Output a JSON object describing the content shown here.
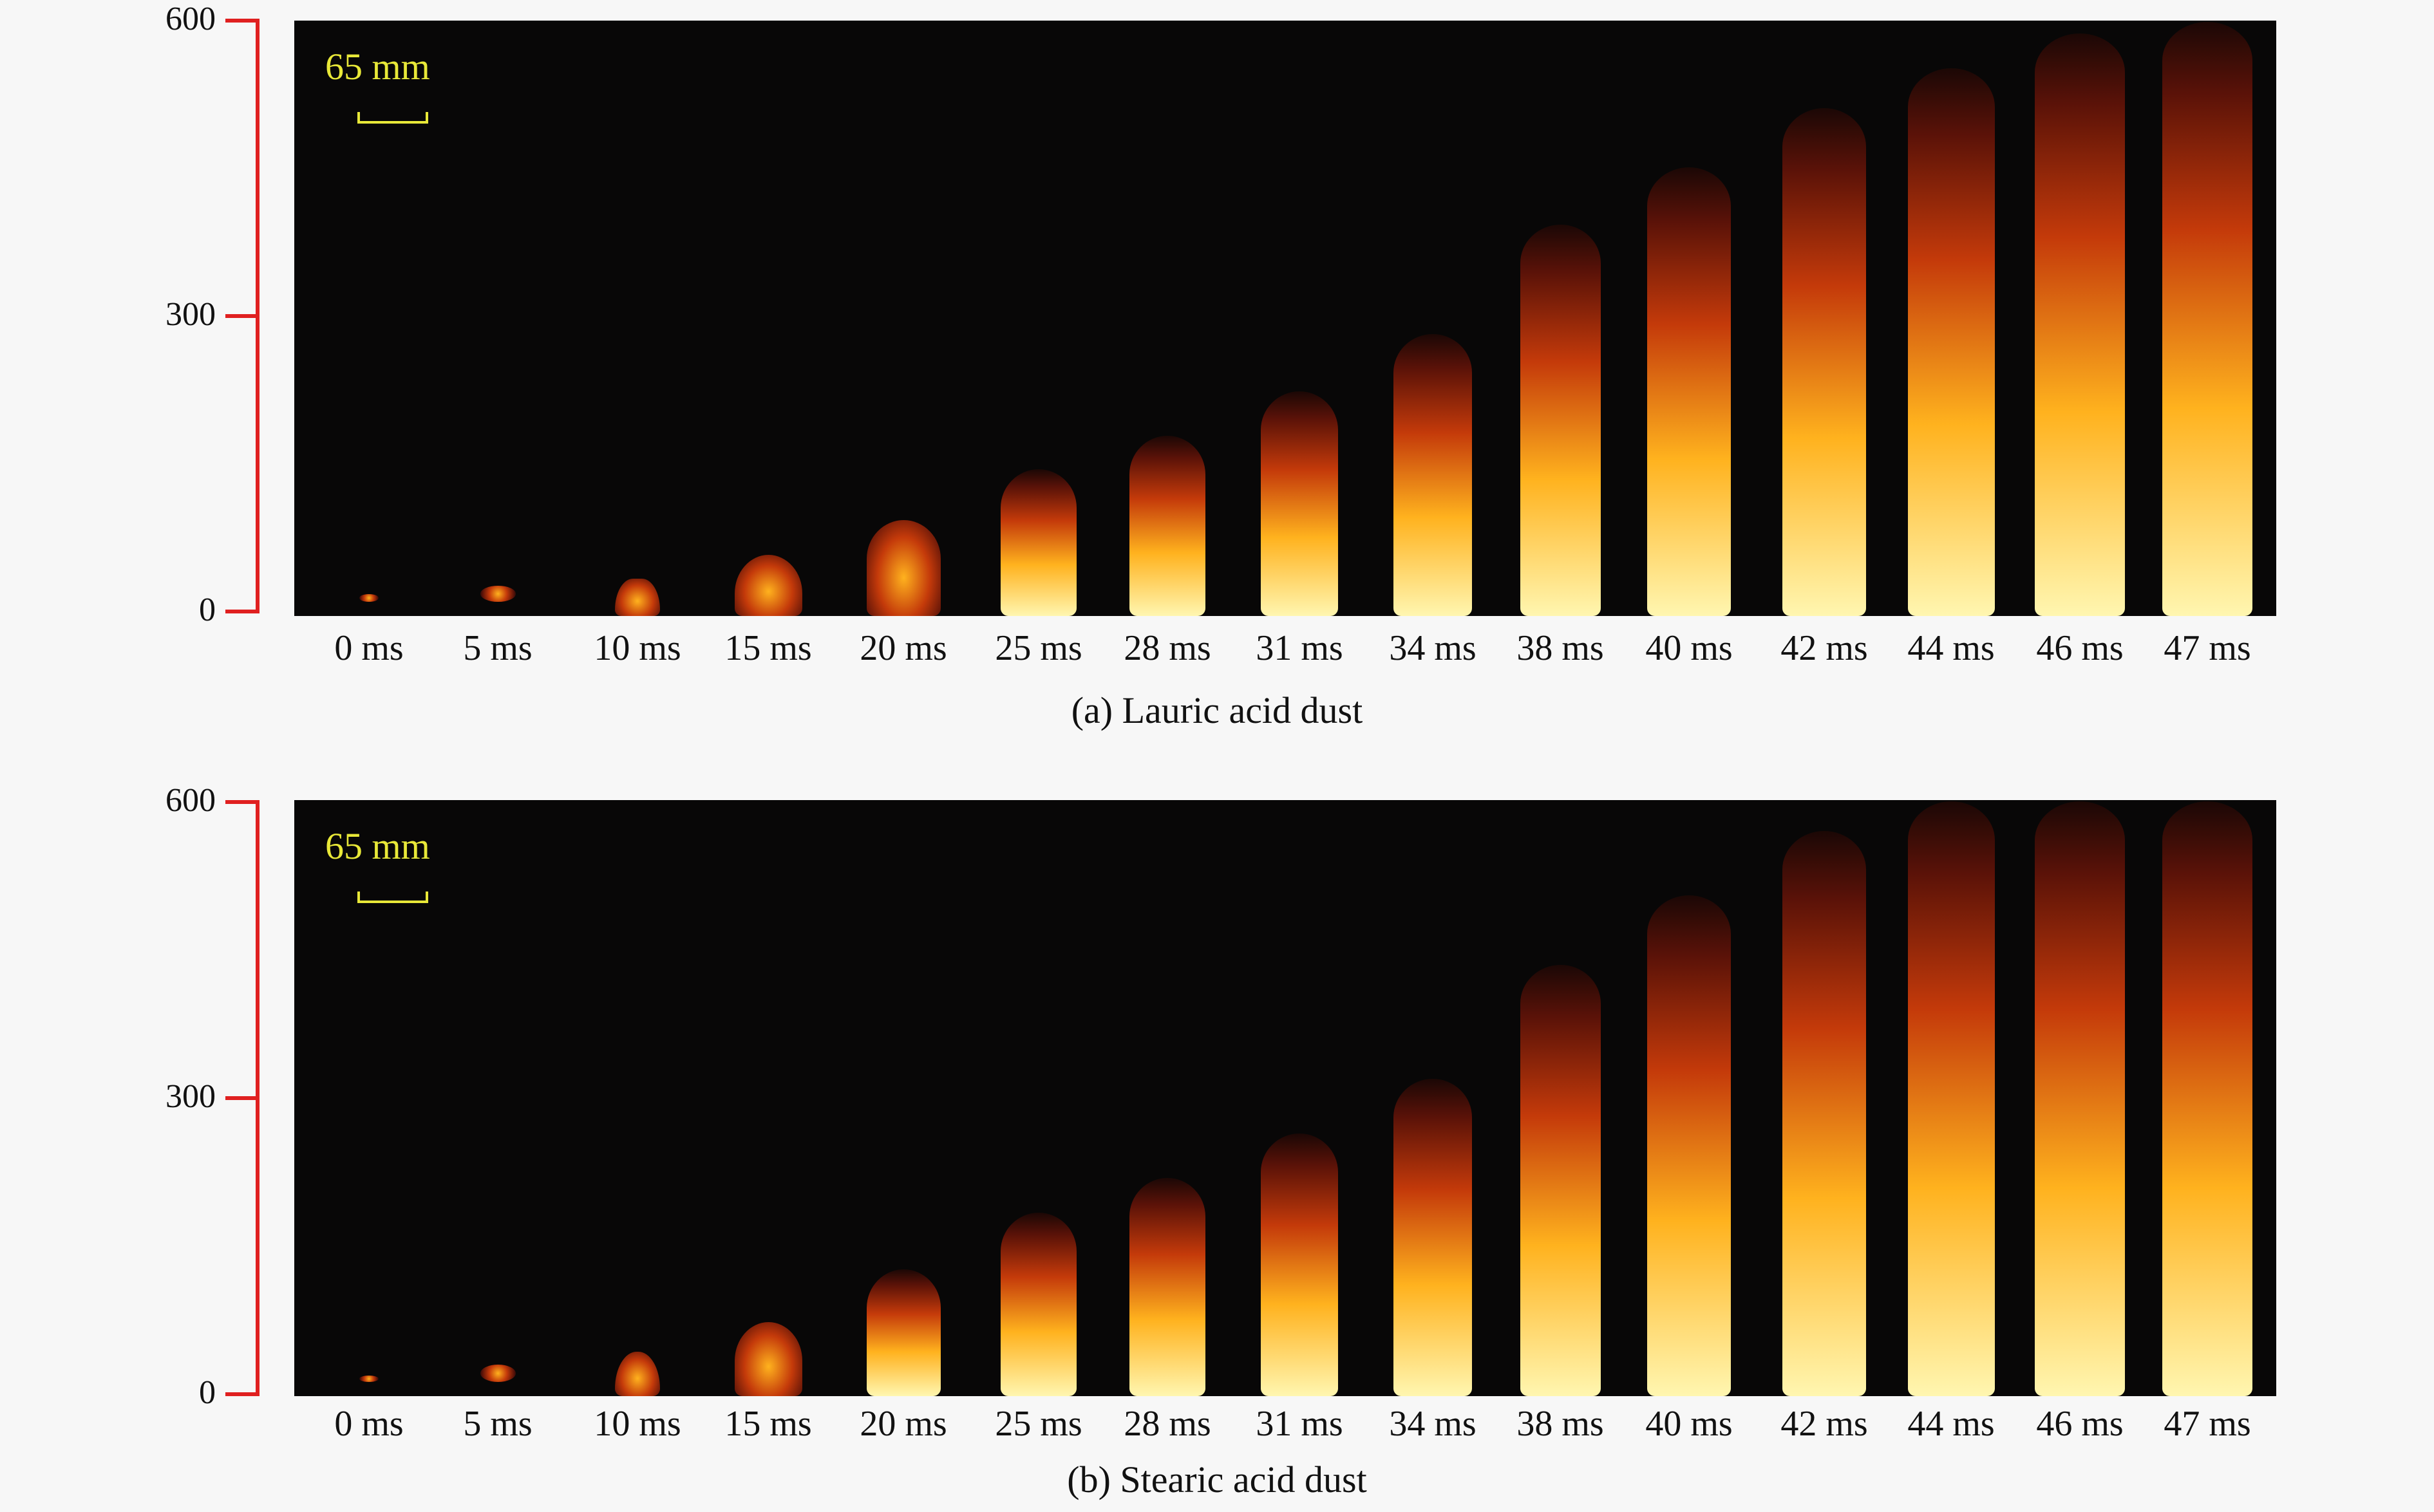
{
  "panels": [
    {
      "caption": "(a) Lauric acid dust",
      "y_ticks": [
        "0",
        "300",
        "600"
      ],
      "scale_label": "65 mm",
      "frames": [
        {
          "time": "0 ms",
          "flame_height": 10
        },
        {
          "time": "5 ms",
          "flame_height": 20
        },
        {
          "time": "10 ms",
          "flame_height": 38
        },
        {
          "time": "15 ms",
          "flame_height": 62
        },
        {
          "time": "20 ms",
          "flame_height": 97
        },
        {
          "time": "25 ms",
          "flame_height": 148
        },
        {
          "time": "28 ms",
          "flame_height": 182
        },
        {
          "time": "31 ms",
          "flame_height": 227
        },
        {
          "time": "34 ms",
          "flame_height": 285
        },
        {
          "time": "38 ms",
          "flame_height": 395
        },
        {
          "time": "40 ms",
          "flame_height": 453
        },
        {
          "time": "42 ms",
          "flame_height": 513
        },
        {
          "time": "44 ms",
          "flame_height": 553
        },
        {
          "time": "46 ms",
          "flame_height": 588
        },
        {
          "time": "47 ms",
          "flame_height": 600
        }
      ]
    },
    {
      "caption": "(b) Stearic acid dust",
      "y_ticks": [
        "0",
        "300",
        "600"
      ],
      "scale_label": "65 mm",
      "frames": [
        {
          "time": "0 ms",
          "flame_height": 8
        },
        {
          "time": "5 ms",
          "flame_height": 22
        },
        {
          "time": "10 ms",
          "flame_height": 45
        },
        {
          "time": "15 ms",
          "flame_height": 75
        },
        {
          "time": "20 ms",
          "flame_height": 128
        },
        {
          "time": "25 ms",
          "flame_height": 185
        },
        {
          "time": "28 ms",
          "flame_height": 220
        },
        {
          "time": "31 ms",
          "flame_height": 265
        },
        {
          "time": "34 ms",
          "flame_height": 320
        },
        {
          "time": "38 ms",
          "flame_height": 435
        },
        {
          "time": "40 ms",
          "flame_height": 505
        },
        {
          "time": "42 ms",
          "flame_height": 570
        },
        {
          "time": "44 ms",
          "flame_height": 600
        },
        {
          "time": "46 ms",
          "flame_height": 600
        },
        {
          "time": "47 ms",
          "flame_height": 600
        }
      ]
    }
  ],
  "colors": {
    "axis": "#e02020",
    "scale": "#e8e838",
    "flame_core": "#fff6b0",
    "flame_mid": "#ffb21e",
    "flame_edge": "#c43a0a",
    "flame_top": "#5a1208"
  }
}
